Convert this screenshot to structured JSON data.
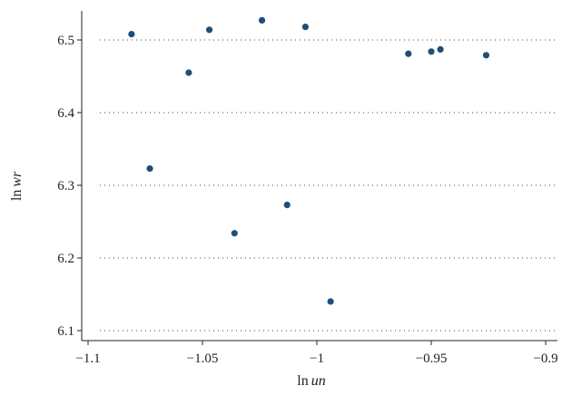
{
  "chart_data": {
    "type": "scatter",
    "title": "",
    "xlabel": {
      "prefix": "ln",
      "var": "un"
    },
    "ylabel": {
      "prefix": "ln",
      "var": "wr"
    },
    "xlim": [
      -1.1,
      -0.9
    ],
    "ylim": [
      6.1,
      6.525
    ],
    "xticks": [
      -1.1,
      -1.05,
      -1,
      -0.95,
      -0.9
    ],
    "xtick_labels": [
      "−1.1",
      "−1.05",
      "−1",
      "−0.95",
      "−0.9"
    ],
    "yticks": [
      6.1,
      6.2,
      6.3,
      6.4,
      6.5
    ],
    "ytick_labels": [
      "6.1",
      "6.2",
      "6.3",
      "6.4",
      "6.5"
    ],
    "grid": "horizontal dotted",
    "marker_color": "#1f4e79",
    "points": [
      {
        "x": -1.081,
        "y": 6.508
      },
      {
        "x": -1.073,
        "y": 6.323
      },
      {
        "x": -1.056,
        "y": 6.455
      },
      {
        "x": -1.047,
        "y": 6.514
      },
      {
        "x": -1.036,
        "y": 6.234
      },
      {
        "x": -1.024,
        "y": 6.527
      },
      {
        "x": -1.013,
        "y": 6.273
      },
      {
        "x": -1.005,
        "y": 6.518
      },
      {
        "x": -0.994,
        "y": 6.14
      },
      {
        "x": -0.96,
        "y": 6.481
      },
      {
        "x": -0.95,
        "y": 6.484
      },
      {
        "x": -0.946,
        "y": 6.487
      },
      {
        "x": -0.926,
        "y": 6.479
      }
    ]
  }
}
